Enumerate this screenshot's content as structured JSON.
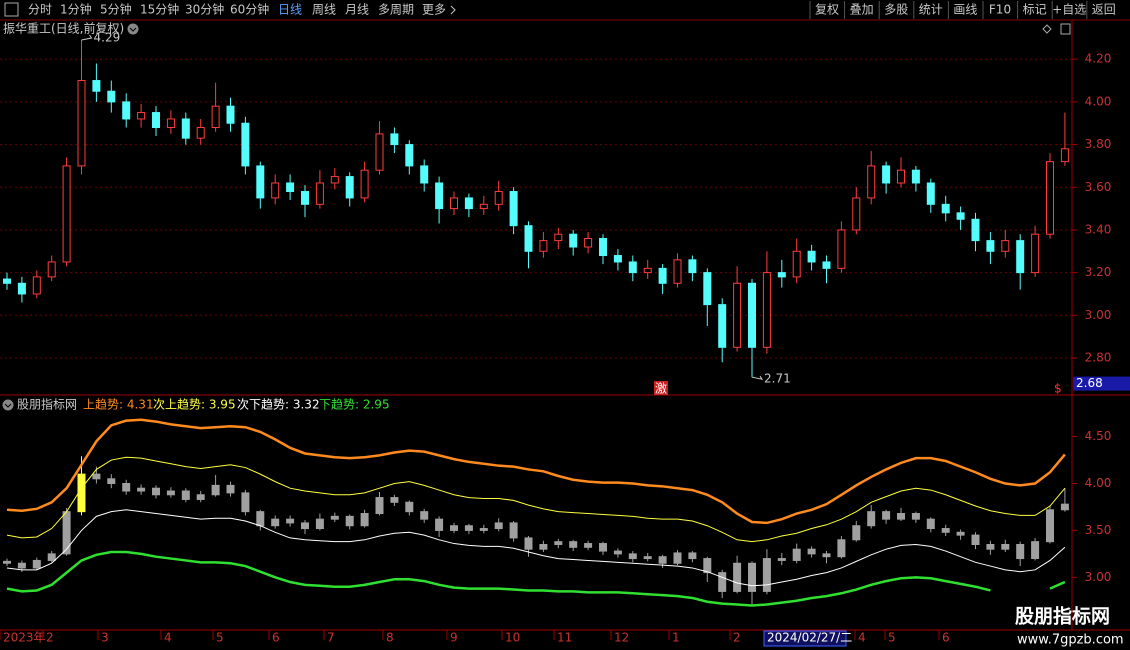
{
  "toolbar": {
    "left": [
      "分时",
      "1分钟",
      "5分钟",
      "15分钟",
      "30分钟",
      "60分钟",
      "日线",
      "周线",
      "月线",
      "多周期",
      "更多"
    ],
    "right": [
      "复权",
      "叠加",
      "多股",
      "统计",
      "画线",
      "F10",
      "标记",
      "+自选",
      "返回"
    ]
  },
  "x_axis": {
    "labels": [
      "2023年",
      "2",
      "3",
      "4",
      "5",
      "6",
      "7",
      "8",
      "9",
      "10",
      "11",
      "12",
      "1",
      "2",
      "4",
      "5",
      "6"
    ],
    "cursor_label": "2024/02/27/二"
  },
  "watermark": {
    "title": "股朋指标网",
    "url": "www.7gpzb.com"
  },
  "chart_data": [
    {
      "type": "candlestick",
      "title": "振华重工(日线,前复权)",
      "open": [
        3.17,
        3.15,
        3.1,
        3.18,
        3.25,
        3.7,
        4.1,
        4.05,
        4.0,
        3.92,
        3.95,
        3.88,
        3.92,
        3.83,
        3.88,
        3.98,
        3.9,
        3.7,
        3.55,
        3.62,
        3.58,
        3.52,
        3.62,
        3.65,
        3.55,
        3.68,
        3.85,
        3.8,
        3.7,
        3.62,
        3.5,
        3.55,
        3.5,
        3.52,
        3.58,
        3.42,
        3.3,
        3.35,
        3.38,
        3.32,
        3.36,
        3.28,
        3.25,
        3.2,
        3.22,
        3.15,
        3.26,
        3.2,
        3.05,
        2.85,
        3.15,
        2.85,
        3.2,
        3.18,
        3.3,
        3.25,
        3.22,
        3.4,
        3.55,
        3.7,
        3.62,
        3.68,
        3.62,
        3.52,
        3.48,
        3.45,
        3.35,
        3.3,
        3.35,
        3.2,
        3.38,
        3.72
      ],
      "high": [
        3.2,
        3.18,
        3.21,
        3.28,
        3.74,
        4.29,
        4.18,
        4.1,
        4.04,
        3.99,
        3.98,
        3.96,
        3.95,
        3.92,
        4.09,
        4.02,
        3.93,
        3.72,
        3.66,
        3.66,
        3.61,
        3.68,
        3.69,
        3.67,
        3.72,
        3.91,
        3.88,
        3.82,
        3.73,
        3.65,
        3.58,
        3.57,
        3.56,
        3.63,
        3.6,
        3.44,
        3.39,
        3.41,
        3.4,
        3.39,
        3.38,
        3.31,
        3.28,
        3.26,
        3.24,
        3.29,
        3.28,
        3.22,
        3.08,
        3.23,
        3.17,
        3.3,
        3.26,
        3.36,
        3.33,
        3.28,
        3.44,
        3.6,
        3.77,
        3.72,
        3.74,
        3.7,
        3.64,
        3.56,
        3.51,
        3.48,
        3.39,
        3.4,
        3.38,
        3.42,
        3.76,
        3.95
      ],
      "low": [
        3.12,
        3.06,
        3.08,
        3.16,
        3.23,
        3.66,
        4.0,
        3.95,
        3.88,
        3.88,
        3.84,
        3.85,
        3.8,
        3.8,
        3.86,
        3.86,
        3.66,
        3.5,
        3.52,
        3.54,
        3.46,
        3.5,
        3.59,
        3.51,
        3.53,
        3.66,
        3.76,
        3.66,
        3.58,
        3.43,
        3.47,
        3.46,
        3.47,
        3.49,
        3.38,
        3.22,
        3.27,
        3.31,
        3.28,
        3.29,
        3.24,
        3.21,
        3.16,
        3.17,
        3.1,
        3.13,
        3.16,
        2.95,
        2.78,
        2.83,
        2.71,
        2.82,
        3.13,
        3.15,
        3.21,
        3.15,
        3.2,
        3.38,
        3.52,
        3.57,
        3.6,
        3.58,
        3.48,
        3.44,
        3.4,
        3.3,
        3.24,
        3.27,
        3.12,
        3.18,
        3.36,
        3.7
      ],
      "close": [
        3.15,
        3.1,
        3.18,
        3.25,
        3.7,
        4.1,
        4.05,
        4.0,
        3.92,
        3.95,
        3.88,
        3.92,
        3.83,
        3.88,
        3.98,
        3.9,
        3.7,
        3.55,
        3.62,
        3.58,
        3.52,
        3.62,
        3.65,
        3.55,
        3.68,
        3.85,
        3.8,
        3.7,
        3.62,
        3.5,
        3.55,
        3.5,
        3.52,
        3.58,
        3.42,
        3.3,
        3.35,
        3.38,
        3.32,
        3.36,
        3.28,
        3.25,
        3.2,
        3.22,
        3.15,
        3.26,
        3.2,
        3.05,
        2.85,
        3.15,
        2.85,
        3.2,
        3.18,
        3.3,
        3.25,
        3.22,
        3.4,
        3.55,
        3.7,
        3.62,
        3.68,
        3.62,
        3.52,
        3.48,
        3.45,
        3.35,
        3.3,
        3.35,
        3.2,
        3.38,
        3.72,
        3.78
      ],
      "up_color": "#ff3c3c",
      "down_color": "#54fcfc",
      "ylim": [
        2.65,
        4.29
      ],
      "yticks": [
        {
          "value": 4.2,
          "label": "4.20"
        },
        {
          "value": 4.0,
          "label": "4.00"
        },
        {
          "value": 3.8,
          "label": "3.80"
        },
        {
          "value": 3.6,
          "label": "3.60"
        },
        {
          "value": 3.4,
          "label": "3.40"
        },
        {
          "value": 3.2,
          "label": "3.20"
        },
        {
          "value": 3.0,
          "label": "3.00"
        },
        {
          "value": 2.8,
          "label": "2.80"
        }
      ],
      "grid": true,
      "annotations": [
        {
          "value": 4.29
        },
        {
          "value": 2.71
        }
      ],
      "price_label": 2.68,
      "signals": [
        "激",
        "$"
      ]
    },
    {
      "type": "line",
      "title": "股朋指标网",
      "series": [
        {
          "name": "上趋势: 4.31",
          "color": "#ff8a1e",
          "values": [
            3.72,
            3.71,
            3.73,
            3.8,
            3.95,
            4.2,
            4.45,
            4.62,
            4.67,
            4.68,
            4.66,
            4.63,
            4.61,
            4.59,
            4.6,
            4.61,
            4.6,
            4.55,
            4.47,
            4.38,
            4.32,
            4.3,
            4.28,
            4.27,
            4.28,
            4.3,
            4.33,
            4.35,
            4.34,
            4.3,
            4.26,
            4.23,
            4.21,
            4.19,
            4.18,
            4.15,
            4.13,
            4.08,
            4.04,
            4.02,
            4.01,
            4.01,
            4.0,
            3.98,
            3.97,
            3.95,
            3.93,
            3.88,
            3.8,
            3.68,
            3.59,
            3.58,
            3.62,
            3.68,
            3.72,
            3.78,
            3.88,
            3.98,
            4.07,
            4.15,
            4.22,
            4.27,
            4.27,
            4.24,
            4.18,
            4.12,
            4.05,
            4.0,
            3.98,
            4.0,
            4.12,
            4.31
          ]
        },
        {
          "name": "次上趋势: 3.95",
          "color": "#ffff40",
          "values": [
            3.45,
            3.42,
            3.43,
            3.52,
            3.7,
            3.95,
            4.15,
            4.25,
            4.28,
            4.27,
            4.24,
            4.21,
            4.18,
            4.16,
            4.18,
            4.2,
            4.17,
            4.1,
            4.02,
            3.95,
            3.92,
            3.9,
            3.88,
            3.88,
            3.9,
            3.95,
            4.0,
            4.02,
            3.98,
            3.93,
            3.88,
            3.85,
            3.84,
            3.84,
            3.82,
            3.77,
            3.73,
            3.7,
            3.69,
            3.68,
            3.67,
            3.66,
            3.65,
            3.63,
            3.62,
            3.62,
            3.6,
            3.55,
            3.48,
            3.4,
            3.38,
            3.4,
            3.44,
            3.47,
            3.52,
            3.56,
            3.62,
            3.7,
            3.8,
            3.86,
            3.92,
            3.95,
            3.93,
            3.88,
            3.82,
            3.76,
            3.71,
            3.68,
            3.66,
            3.66,
            3.76,
            3.95
          ]
        },
        {
          "name": "次下趋势: 3.32",
          "color": "#ffffff",
          "values": [
            3.1,
            3.08,
            3.08,
            3.15,
            3.3,
            3.5,
            3.65,
            3.7,
            3.72,
            3.7,
            3.68,
            3.66,
            3.64,
            3.62,
            3.63,
            3.63,
            3.6,
            3.55,
            3.48,
            3.42,
            3.4,
            3.39,
            3.38,
            3.38,
            3.4,
            3.44,
            3.47,
            3.48,
            3.45,
            3.4,
            3.36,
            3.34,
            3.33,
            3.33,
            3.31,
            3.27,
            3.23,
            3.2,
            3.19,
            3.18,
            3.17,
            3.16,
            3.15,
            3.14,
            3.13,
            3.12,
            3.1,
            3.06,
            3.0,
            2.94,
            2.91,
            2.92,
            2.95,
            2.98,
            3.02,
            3.05,
            3.1,
            3.17,
            3.24,
            3.3,
            3.34,
            3.35,
            3.33,
            3.28,
            3.22,
            3.16,
            3.12,
            3.08,
            3.06,
            3.08,
            3.18,
            3.32
          ]
        },
        {
          "name": "下趋势: 2.95",
          "color": "#30e030",
          "values": [
            2.88,
            2.85,
            2.86,
            2.92,
            3.05,
            3.18,
            3.24,
            3.27,
            3.27,
            3.25,
            3.22,
            3.2,
            3.18,
            3.16,
            3.16,
            3.15,
            3.12,
            3.06,
            3.0,
            2.95,
            2.92,
            2.91,
            2.9,
            2.9,
            2.92,
            2.95,
            2.98,
            2.98,
            2.96,
            2.92,
            2.89,
            2.88,
            2.88,
            2.88,
            2.87,
            2.86,
            2.86,
            2.85,
            2.85,
            2.84,
            2.84,
            2.84,
            2.83,
            2.82,
            2.81,
            2.8,
            2.78,
            2.74,
            2.72,
            2.71,
            2.7,
            2.71,
            2.73,
            2.75,
            2.78,
            2.8,
            2.83,
            2.87,
            2.92,
            2.96,
            2.99,
            3.0,
            2.99,
            2.96,
            2.93,
            2.9,
            2.86,
            null,
            null,
            null,
            2.88,
            2.95
          ]
        }
      ],
      "candle_color": "#a0a0a0",
      "ylim": [
        2.46,
        4.89
      ],
      "yticks": [
        {
          "value": 4.5,
          "label": "4.50"
        },
        {
          "value": 4.0,
          "label": "4.00"
        },
        {
          "value": 3.5,
          "label": "3.50"
        },
        {
          "value": 3.0,
          "label": "3.00"
        }
      ],
      "grid": false
    }
  ]
}
